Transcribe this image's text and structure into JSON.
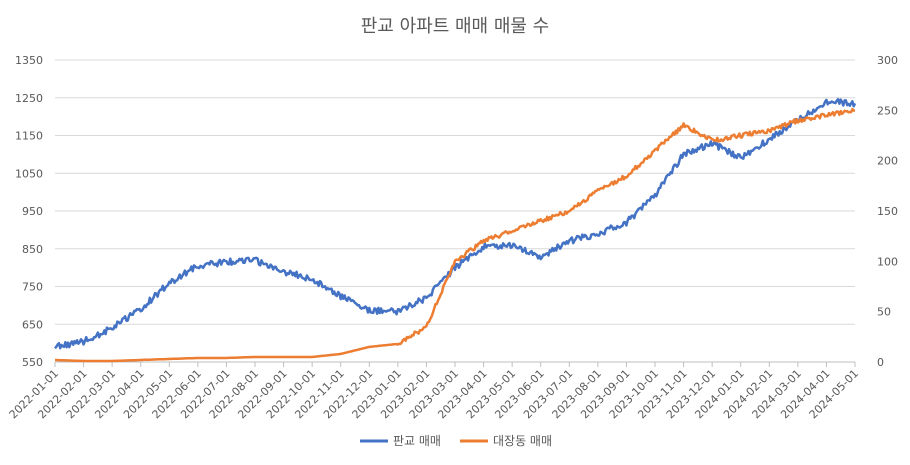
{
  "chart_data": {
    "type": "line",
    "title": "판교 아파트 매매 매물 수",
    "x": [
      "2022-01-01",
      "2022-02-01",
      "2022-03-01",
      "2022-04-01",
      "2022-05-01",
      "2022-06-01",
      "2022-07-01",
      "2022-08-01",
      "2022-09-01",
      "2022-10-01",
      "2022-11-01",
      "2022-12-01",
      "2023-01-01",
      "2023-02-01",
      "2023-03-01",
      "2023-04-01",
      "2023-05-01",
      "2023-06-01",
      "2023-07-01",
      "2023-08-01",
      "2023-09-01",
      "2023-10-01",
      "2023-11-01",
      "2023-12-01",
      "2024-01-01",
      "2024-02-01",
      "2024-03-01",
      "2024-04-01",
      "2024-05-01"
    ],
    "series": [
      {
        "name": "판교 매매",
        "axis": "left",
        "color": "#4472C4",
        "values": [
          590,
          605,
          640,
          690,
          760,
          805,
          815,
          820,
          790,
          770,
          725,
          685,
          685,
          720,
          800,
          855,
          860,
          830,
          870,
          890,
          920,
          990,
          1100,
          1130,
          1090,
          1140,
          1190,
          1240,
          1235
        ]
      },
      {
        "name": "대장동 매매",
        "axis": "right",
        "color": "#ED7D31",
        "values": [
          2,
          1,
          1,
          2,
          3,
          4,
          4,
          5,
          5,
          5,
          8,
          15,
          18,
          35,
          100,
          120,
          130,
          140,
          150,
          170,
          185,
          210,
          235,
          220,
          225,
          230,
          240,
          245,
          250
        ]
      }
    ],
    "y_left": {
      "min": 550,
      "max": 1350,
      "ticks": [
        "550",
        "650",
        "750",
        "850",
        "950",
        "1050",
        "1150",
        "1250",
        "1350"
      ]
    },
    "y_right": {
      "min": 0,
      "max": 300,
      "ticks": [
        "0",
        "50",
        "100",
        "150",
        "200",
        "250",
        "300"
      ]
    },
    "legend": {
      "position": "bottom",
      "items": [
        "판교 매매",
        "대장동 매매"
      ]
    },
    "grid": true
  }
}
